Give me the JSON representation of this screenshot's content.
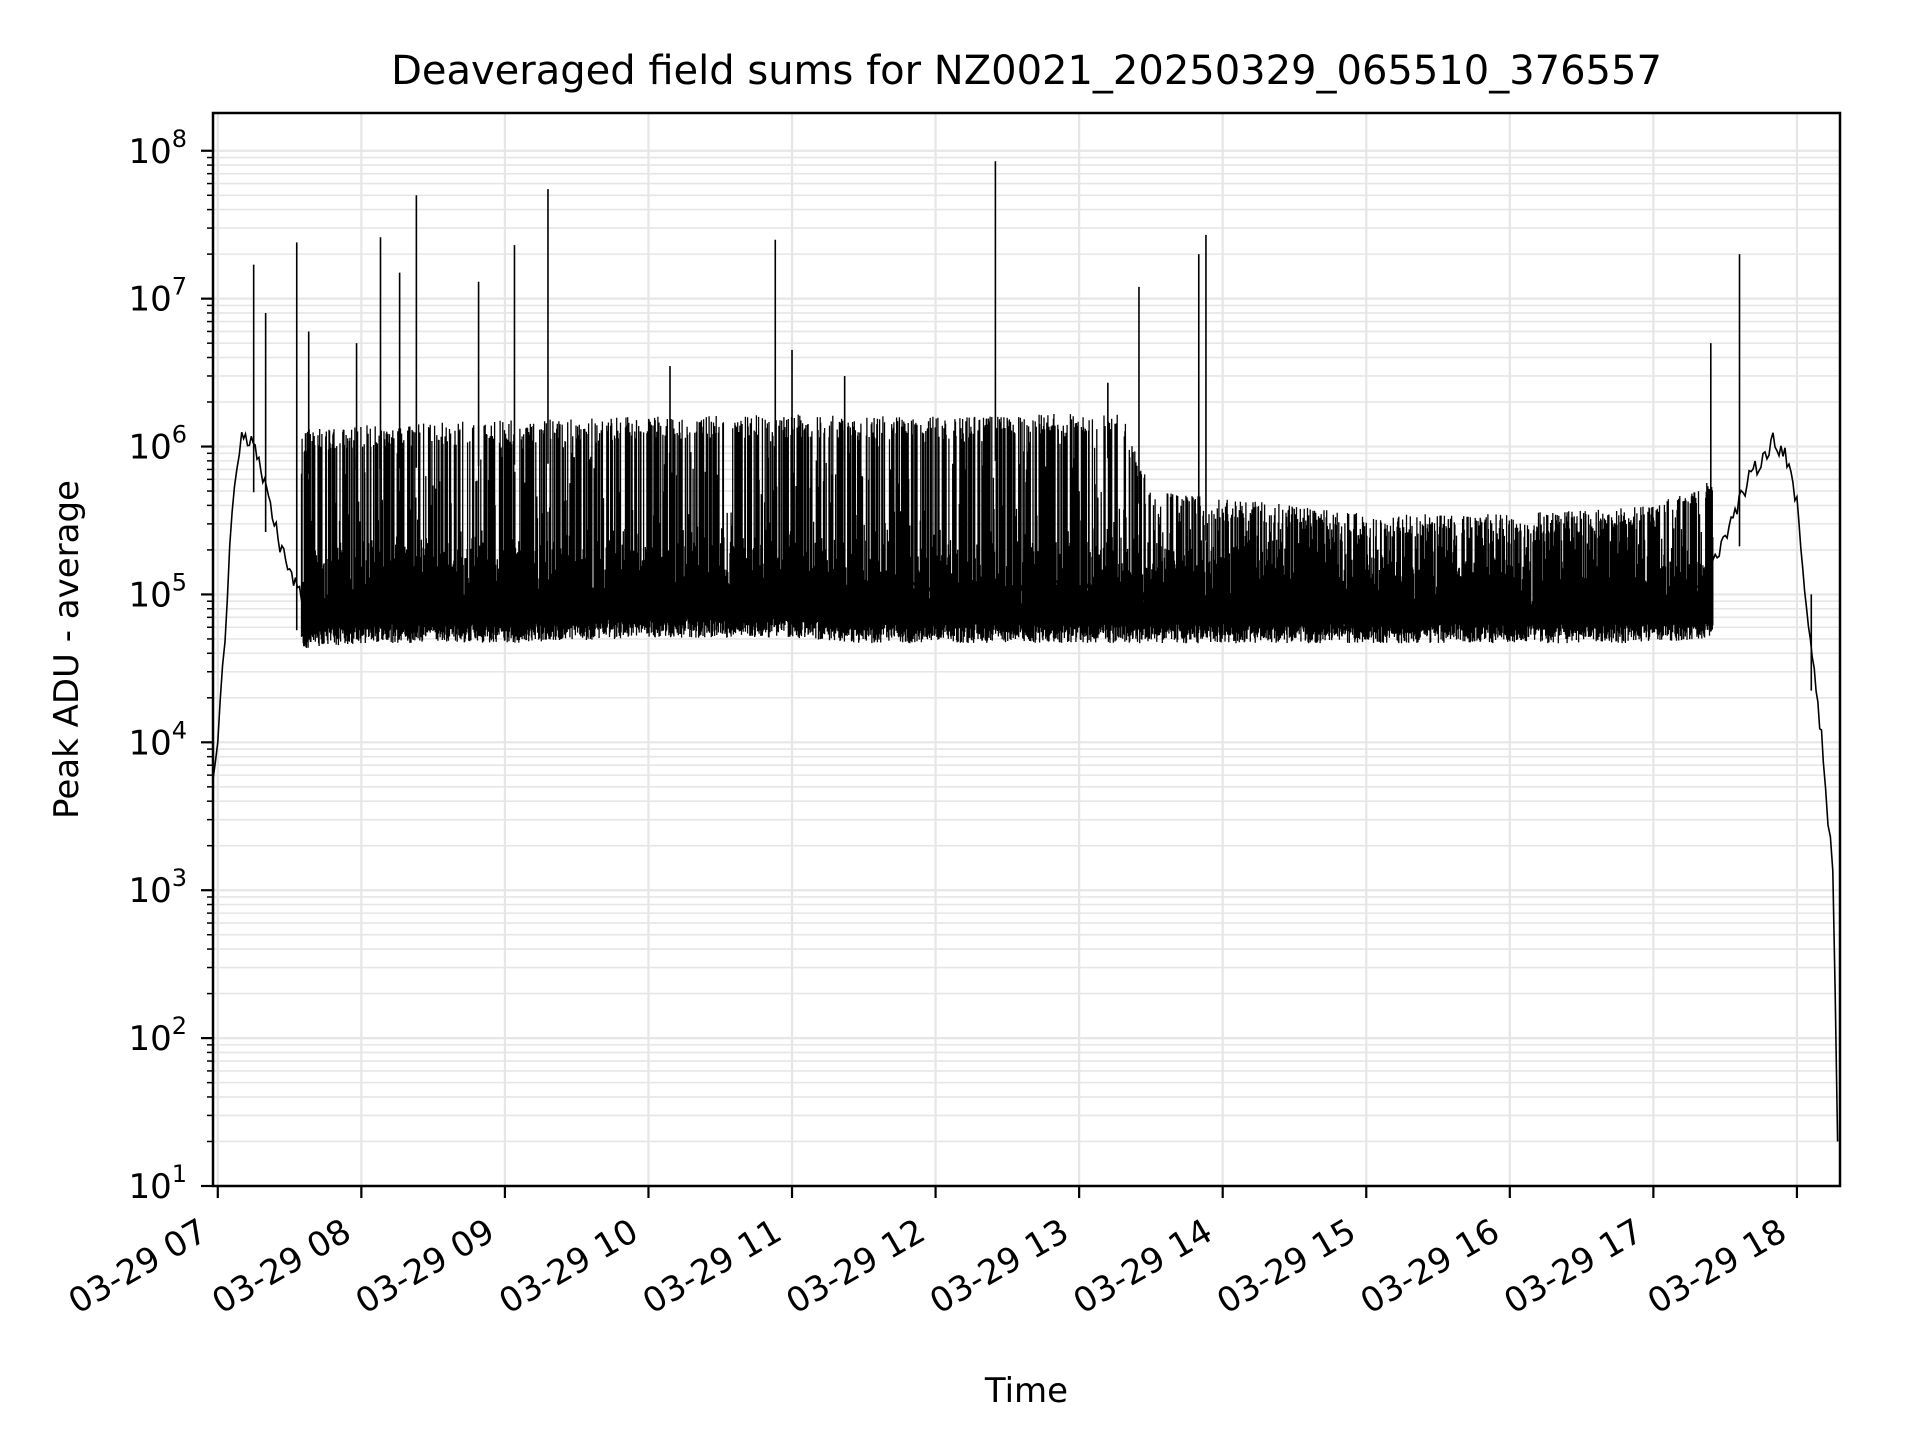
{
  "chart_data": {
    "type": "line",
    "title": "Deaveraged field sums for NZ0021_20250329_065510_376557",
    "xlabel": "Time",
    "ylabel": "Peak ADU - average",
    "y_scale": "log",
    "ylim": [
      10,
      180000000
    ],
    "xlim": [
      "2025-03-29 06:58",
      "2025-03-29 18:18"
    ],
    "grid": "major and minor",
    "x_tick_labels": [
      "03-29 07",
      "03-29 08",
      "03-29 09",
      "03-29 10",
      "03-29 11",
      "03-29 12",
      "03-29 13",
      "03-29 14",
      "03-29 15",
      "03-29 16",
      "03-29 17",
      "03-29 18"
    ],
    "x_ticks": [
      "2025-03-29 07:00",
      "2025-03-29 08:00",
      "2025-03-29 09:00",
      "2025-03-29 10:00",
      "2025-03-29 11:00",
      "2025-03-29 12:00",
      "2025-03-29 13:00",
      "2025-03-29 14:00",
      "2025-03-29 15:00",
      "2025-03-29 16:00",
      "2025-03-29 17:00",
      "2025-03-29 18:00"
    ],
    "y_tick_values": [
      10,
      100,
      1000,
      10000,
      100000,
      1000000,
      10000000,
      100000000
    ],
    "y_tick_labels": [
      {
        "base": "10",
        "exp": "1"
      },
      {
        "base": "10",
        "exp": "2"
      },
      {
        "base": "10",
        "exp": "3"
      },
      {
        "base": "10",
        "exp": "4"
      },
      {
        "base": "10",
        "exp": "5"
      },
      {
        "base": "10",
        "exp": "6"
      },
      {
        "base": "10",
        "exp": "7"
      },
      {
        "base": "10",
        "exp": "8"
      }
    ],
    "line_color": "#000000",
    "grid_color": "#e6e6e6",
    "series": [
      {
        "name": "",
        "x": [
          "2025-03-29 06:58",
          "2025-03-29 07:00",
          "2025-03-29 07:02",
          "2025-03-29 07:04",
          "2025-03-29 07:06",
          "2025-03-29 07:08",
          "2025-03-29 07:10",
          "2025-03-29 07:14",
          "2025-03-29 07:18",
          "2025-03-29 07:22",
          "2025-03-29 07:26",
          "2025-03-29 07:30",
          "2025-03-29 07:35",
          "2025-03-29 07:40",
          "2025-03-29 07:50",
          "2025-03-29 08:00",
          "2025-03-29 08:15",
          "2025-03-29 08:30",
          "2025-03-29 09:00",
          "2025-03-29 09:30",
          "2025-03-29 10:00",
          "2025-03-29 10:30",
          "2025-03-29 11:00",
          "2025-03-29 11:30",
          "2025-03-29 12:00",
          "2025-03-29 12:30",
          "2025-03-29 13:00",
          "2025-03-29 13:20",
          "2025-03-29 13:30",
          "2025-03-29 14:00",
          "2025-03-29 14:30",
          "2025-03-29 15:00",
          "2025-03-29 15:30",
          "2025-03-29 16:00",
          "2025-03-29 16:30",
          "2025-03-29 17:00",
          "2025-03-29 17:20",
          "2025-03-29 17:30",
          "2025-03-29 17:40",
          "2025-03-29 17:50",
          "2025-03-29 17:55",
          "2025-03-29 18:00",
          "2025-03-29 18:04",
          "2025-03-29 18:08",
          "2025-03-29 18:11",
          "2025-03-29 18:13",
          "2025-03-29 18:15",
          "2025-03-29 18:17"
        ],
        "y": [
          6000,
          10000,
          30000,
          100000,
          400000,
          800000,
          1200000,
          1100000,
          700000,
          400000,
          220000,
          140000,
          100000,
          80000,
          70000,
          65000,
          70000,
          80000,
          85000,
          90000,
          95000,
          100000,
          110000,
          110000,
          110000,
          110000,
          110000,
          110000,
          85000,
          90000,
          85000,
          75000,
          75000,
          75000,
          75000,
          80000,
          120000,
          250000,
          600000,
          1100000,
          900000,
          400000,
          80000,
          25000,
          8000,
          3000,
          1500,
          20
        ]
      }
    ],
    "fluctuation_band": {
      "x": [
        "2025-03-29 07:35",
        "2025-03-29 08:00",
        "2025-03-29 09:00",
        "2025-03-29 10:00",
        "2025-03-29 11:00",
        "2025-03-29 11:30",
        "2025-03-29 12:00",
        "2025-03-29 12:30",
        "2025-03-29 13:00",
        "2025-03-29 13:18",
        "2025-03-29 13:30",
        "2025-03-29 14:00",
        "2025-03-29 14:30",
        "2025-03-29 15:00",
        "2025-03-29 16:00",
        "2025-03-29 17:00",
        "2025-03-29 17:25"
      ],
      "upper": [
        1300000,
        1400000,
        1500000,
        1600000,
        1650000,
        1600000,
        1600000,
        1600000,
        1700000,
        1650000,
        500000,
        450000,
        400000,
        350000,
        350000,
        400000,
        600000
      ],
      "lower": [
        50000,
        55000,
        55000,
        60000,
        60000,
        55000,
        55000,
        55000,
        55000,
        55000,
        55000,
        55000,
        55000,
        55000,
        55000,
        55000,
        60000
      ]
    },
    "spikes": [
      {
        "x": "2025-03-29 07:15",
        "y": 17000000
      },
      {
        "x": "2025-03-29 07:20",
        "y": 8000000
      },
      {
        "x": "2025-03-29 07:33",
        "y": 24000000
      },
      {
        "x": "2025-03-29 07:38",
        "y": 6000000
      },
      {
        "x": "2025-03-29 07:58",
        "y": 5000000
      },
      {
        "x": "2025-03-29 08:08",
        "y": 26000000
      },
      {
        "x": "2025-03-29 08:16",
        "y": 15000000
      },
      {
        "x": "2025-03-29 08:23",
        "y": 50000000
      },
      {
        "x": "2025-03-29 08:49",
        "y": 13000000
      },
      {
        "x": "2025-03-29 09:04",
        "y": 23000000
      },
      {
        "x": "2025-03-29 09:18",
        "y": 55000000
      },
      {
        "x": "2025-03-29 10:09",
        "y": 3500000
      },
      {
        "x": "2025-03-29 10:53",
        "y": 25000000
      },
      {
        "x": "2025-03-29 11:00",
        "y": 4500000
      },
      {
        "x": "2025-03-29 11:22",
        "y": 3000000
      },
      {
        "x": "2025-03-29 12:25",
        "y": 85000000
      },
      {
        "x": "2025-03-29 13:12",
        "y": 2700000
      },
      {
        "x": "2025-03-29 13:25",
        "y": 12000000
      },
      {
        "x": "2025-03-29 13:50",
        "y": 20000000
      },
      {
        "x": "2025-03-29 13:53",
        "y": 27000000
      },
      {
        "x": "2025-03-29 17:24",
        "y": 5000000
      },
      {
        "x": "2025-03-29 17:36",
        "y": 20000000
      },
      {
        "x": "2025-03-29 18:06",
        "y": 100000
      }
    ]
  }
}
